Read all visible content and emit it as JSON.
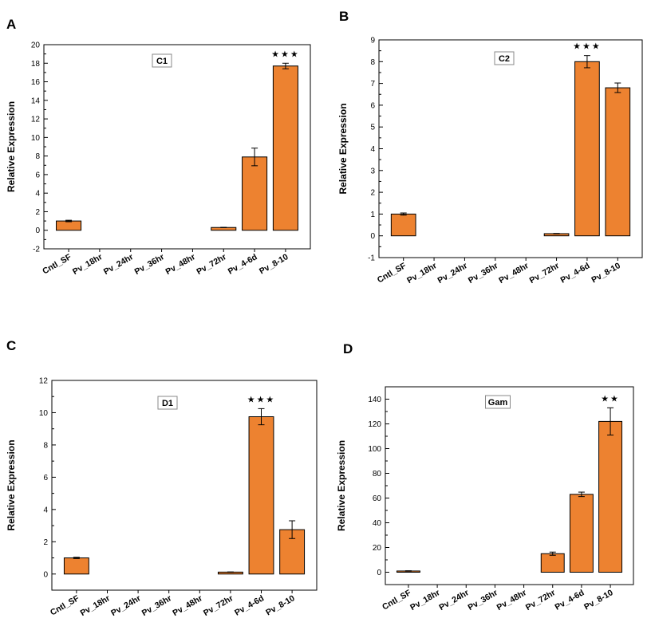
{
  "bar_color": "#ED8230",
  "bar_stroke": "#000000",
  "chart_data": [
    {
      "panel": "A",
      "type": "bar",
      "title": "C1",
      "xlabel": "",
      "ylabel": "Relative Expression",
      "ylim": [
        -2,
        20
      ],
      "yticks": [
        -2,
        0,
        2,
        4,
        6,
        8,
        10,
        12,
        14,
        16,
        18,
        20
      ],
      "categories": [
        "Cntl_SF",
        "Pv_18hr",
        "Pv_24hr",
        "Pv_36hr",
        "Pv_48hr",
        "Pv_72hr",
        "Pv_4-6d",
        "Pv_8-10"
      ],
      "values": [
        1.0,
        0,
        0,
        0,
        0,
        0.3,
        7.9,
        17.7
      ],
      "errors": [
        0.08,
        0,
        0,
        0,
        0,
        0.02,
        0.95,
        0.3
      ],
      "significance": [
        {
          "category": "Pv_8-10",
          "label": "★★★"
        }
      ]
    },
    {
      "panel": "B",
      "type": "bar",
      "title": "C2",
      "xlabel": "",
      "ylabel": "Relative Expression",
      "ylim": [
        -1,
        9
      ],
      "yticks": [
        -1,
        0,
        1,
        2,
        3,
        4,
        5,
        6,
        7,
        8,
        9
      ],
      "categories": [
        "Cntl_SF",
        "Pv_18hr",
        "Pv_24hr",
        "Pv_36hr",
        "Pv_48hr",
        "Pv_72hr",
        "Pv_4-6d",
        "Pv_8-10"
      ],
      "values": [
        1.0,
        0,
        0,
        0,
        0,
        0.1,
        8.0,
        6.8
      ],
      "errors": [
        0.05,
        0,
        0,
        0,
        0,
        0.01,
        0.28,
        0.22
      ],
      "significance": [
        {
          "category": "Pv_4-6d",
          "label": "★★★"
        }
      ]
    },
    {
      "panel": "C",
      "type": "bar",
      "title": "D1",
      "xlabel": "",
      "ylabel": "Relative Expression",
      "ylim": [
        -1,
        12
      ],
      "yticks": [
        0,
        2,
        4,
        6,
        8,
        10,
        12
      ],
      "categories": [
        "Cntl_SF",
        "Pv_18hr",
        "Pv_24hr",
        "Pv_36hr",
        "Pv_48hr",
        "Pv_72hr",
        "Pv_4-6d",
        "Pv_8-10"
      ],
      "values": [
        1.0,
        0,
        0,
        0,
        0,
        0.12,
        9.75,
        2.75
      ],
      "errors": [
        0.04,
        0,
        0,
        0,
        0,
        0.01,
        0.5,
        0.55
      ],
      "significance": [
        {
          "category": "Pv_4-6d",
          "label": "★★★"
        }
      ]
    },
    {
      "panel": "D",
      "type": "bar",
      "title": "Gam",
      "xlabel": "",
      "ylabel": "Relative Expression",
      "ylim": [
        -10,
        150
      ],
      "yticks": [
        0,
        20,
        40,
        60,
        80,
        100,
        120,
        140
      ],
      "categories": [
        "Cntl_SF",
        "Pv_18hr",
        "Pv_24hr",
        "Pv_36hr",
        "Pv_48hr",
        "Pv_72hr",
        "Pv_4-6d",
        "Pv_8-10"
      ],
      "values": [
        1.0,
        0,
        0,
        0,
        0,
        15,
        63,
        122
      ],
      "errors": [
        0.2,
        0,
        0,
        0,
        0,
        1.3,
        1.8,
        11
      ],
      "significance": [
        {
          "category": "Pv_8-10",
          "label": "★★"
        }
      ]
    }
  ]
}
